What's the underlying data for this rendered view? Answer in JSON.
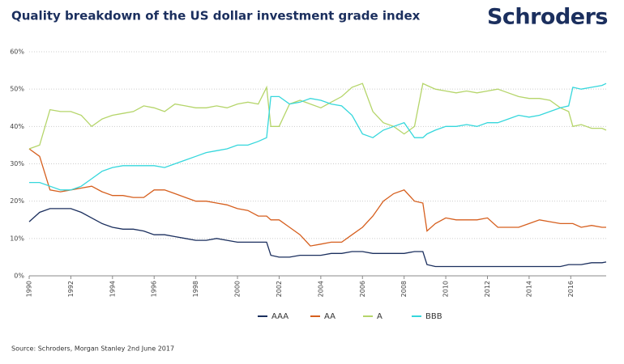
{
  "brand": "Schroders",
  "chart_data": {
    "type": "line",
    "title": "Quality breakdown of the US dollar investment grade index",
    "source": "Source: Schroders, Morgan Stanley 2nd June 2017",
    "x": [
      1990,
      1990.5,
      1991,
      1991.5,
      1992,
      1992.5,
      1993,
      1993.5,
      1994,
      1994.5,
      1995,
      1995.5,
      1996,
      1996.5,
      1997,
      1997.5,
      1998,
      1998.5,
      1999,
      1999.5,
      2000,
      2000.5,
      2001,
      2001.4,
      2001.6,
      2002,
      2002.5,
      2003,
      2003.5,
      2004,
      2004.5,
      2005,
      2005.5,
      2006,
      2006.5,
      2007,
      2007.5,
      2008,
      2008.5,
      2008.9,
      2009.1,
      2009.5,
      2010,
      2010.5,
      2011,
      2011.5,
      2012,
      2012.5,
      2013,
      2013.5,
      2014,
      2014.5,
      2015,
      2015.5,
      2015.9,
      2016.1,
      2016.5,
      2017,
      2017.5,
      2017.7
    ],
    "series": [
      {
        "name": "AAA",
        "color": "#1b2f5e",
        "values": [
          14.5,
          17,
          18,
          18,
          18,
          17,
          15.5,
          14,
          13,
          12.5,
          12.5,
          12,
          11,
          11,
          10.5,
          10,
          9.5,
          9.5,
          10,
          9.5,
          9,
          9,
          9,
          9,
          5.5,
          5,
          5,
          5.5,
          5.5,
          5.5,
          6,
          6,
          6.5,
          6.5,
          6,
          6,
          6,
          6,
          6.5,
          6.5,
          3,
          2.5,
          2.5,
          2.5,
          2.5,
          2.5,
          2.5,
          2.5,
          2.5,
          2.5,
          2.5,
          2.5,
          2.5,
          2.5,
          3,
          3,
          3,
          3.5,
          3.5,
          3.7
        ]
      },
      {
        "name": "AA",
        "color": "#d65f1e",
        "values": [
          34,
          32,
          23,
          22.5,
          23,
          23.5,
          24,
          22.5,
          21.5,
          21.5,
          21,
          21,
          23,
          23,
          22,
          21,
          20,
          20,
          19.5,
          19,
          18,
          17.5,
          16,
          16,
          15,
          15,
          13,
          11,
          8,
          8.5,
          9,
          9,
          11,
          13,
          16,
          20,
          22,
          23,
          20,
          19.5,
          12,
          14,
          15.5,
          15,
          15,
          15,
          15.5,
          13,
          13,
          13,
          14,
          15,
          14.5,
          14,
          14,
          14,
          13,
          13.5,
          13,
          13
        ]
      },
      {
        "name": "A",
        "color": "#b5d56a",
        "values": [
          34,
          35,
          44.5,
          44,
          44,
          43,
          40,
          42,
          43,
          43.5,
          44,
          45.5,
          45,
          44,
          46,
          45.5,
          45,
          45,
          45.5,
          45,
          46,
          46.5,
          46,
          50.5,
          40,
          40,
          46,
          47,
          46,
          45,
          46.5,
          48,
          50.5,
          51.5,
          44,
          41,
          40,
          38,
          40,
          51.5,
          51,
          50,
          49.5,
          49,
          49.5,
          49,
          49.5,
          50,
          49,
          48,
          47.5,
          47.5,
          47,
          45,
          44,
          40,
          40.5,
          39.5,
          39.5,
          39
        ]
      },
      {
        "name": "BBB",
        "color": "#35d7dc",
        "values": [
          25,
          25,
          24,
          23,
          23,
          24,
          26,
          28,
          29,
          29.5,
          29.5,
          29.5,
          29.5,
          29,
          30,
          31,
          32,
          33,
          33.5,
          34,
          35,
          35,
          36,
          37,
          48,
          48,
          46,
          46.5,
          47.5,
          47,
          46,
          45.5,
          43,
          38,
          37,
          39,
          40,
          41,
          37,
          37,
          38,
          39,
          40,
          40,
          40.5,
          40,
          41,
          41,
          42,
          43,
          42.5,
          43,
          44,
          45,
          45.5,
          50.5,
          50,
          50.5,
          51,
          51.5
        ]
      }
    ],
    "xlim": [
      1990,
      2017.7
    ],
    "xticks": [
      1990,
      1992,
      1994,
      1996,
      1998,
      2000,
      2002,
      2004,
      2006,
      2008,
      2010,
      2012,
      2014,
      2016
    ],
    "ylim": [
      0,
      60
    ],
    "yticks": [
      {
        "value": 0,
        "label": "0%"
      },
      {
        "value": 10,
        "label": "10%"
      },
      {
        "value": 20,
        "label": "20%"
      },
      {
        "value": 30,
        "label": "30%"
      },
      {
        "value": 40,
        "label": "40%"
      },
      {
        "value": 50,
        "label": "50%"
      },
      {
        "value": 60,
        "label": "60%"
      }
    ],
    "grid": true
  }
}
